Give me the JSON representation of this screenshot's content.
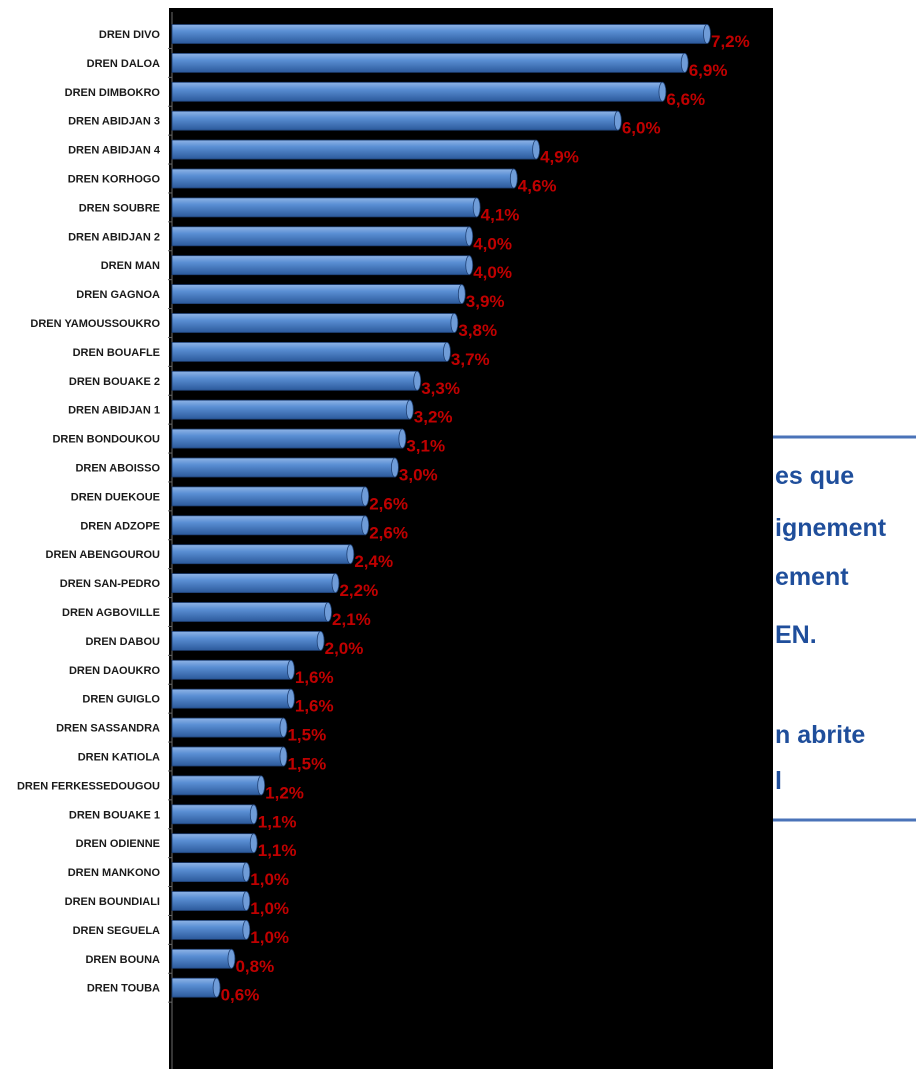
{
  "colors": {
    "plot_background": "#000000",
    "bar": "#4a7fc4",
    "value_label": "#c00000",
    "category_label": "#1a1a1a",
    "side_panel_text": "#1f4e9b",
    "side_panel_rule": "#4a73b8"
  },
  "side_panel": {
    "lines": [
      "es que",
      "ignement",
      "ement",
      "EN.",
      "",
      "n abrite",
      "l"
    ]
  },
  "chart_data": {
    "type": "bar",
    "orientation": "horizontal",
    "title": "",
    "xlabel": "",
    "ylabel": "",
    "xlim": [
      0,
      7.2
    ],
    "grid": false,
    "legend": "none",
    "categories": [
      "DREN DIVO",
      "DREN DALOA",
      "DREN DIMBOKRO",
      "DREN ABIDJAN 3",
      "DREN ABIDJAN 4",
      "DREN KORHOGO",
      "DREN SOUBRE",
      "DREN ABIDJAN 2",
      "DREN MAN",
      "DREN GAGNOA",
      "DREN YAMOUSSOUKRO",
      "DREN BOUAFLE",
      "DREN BOUAKE 2",
      "DREN ABIDJAN 1",
      "DREN BONDOUKOU",
      "DREN ABOISSO",
      "DREN DUEKOUE",
      "DREN ADZOPE",
      "DREN ABENGOUROU",
      "DREN SAN-PEDRO",
      "DREN AGBOVILLE",
      "DREN DABOU",
      "DREN DAOUKRO",
      "DREN GUIGLO",
      "DREN SASSANDRA",
      "DREN KATIOLA",
      "DREN FERKESSEDOUGOU",
      "DREN BOUAKE 1",
      "DREN ODIENNE",
      "DREN MANKONO",
      "DREN BOUNDIALI",
      "DREN SEGUELA",
      "DREN BOUNA",
      "DREN TOUBA"
    ],
    "values": [
      7.2,
      6.9,
      6.6,
      6.0,
      4.9,
      4.6,
      4.1,
      4.0,
      4.0,
      3.9,
      3.8,
      3.7,
      3.3,
      3.2,
      3.1,
      3.0,
      2.6,
      2.6,
      2.4,
      2.2,
      2.1,
      2.0,
      1.6,
      1.6,
      1.5,
      1.5,
      1.2,
      1.1,
      1.1,
      1.0,
      1.0,
      1.0,
      0.8,
      0.6
    ],
    "value_labels": [
      "7,2%",
      "6,9%",
      "6,6%",
      "6,0%",
      "4,9%",
      "4,6%",
      "4,1%",
      "4,0%",
      "4,0%",
      "3,9%",
      "3,8%",
      "3,7%",
      "3,3%",
      "3,2%",
      "3,1%",
      "3,0%",
      "2,6%",
      "2,6%",
      "2,4%",
      "2,2%",
      "2,1%",
      "2,0%",
      "1,6%",
      "1,6%",
      "1,5%",
      "1,5%",
      "1,2%",
      "1,1%",
      "1,1%",
      "1,0%",
      "1,0%",
      "1,0%",
      "0,8%",
      "0,6%"
    ]
  }
}
